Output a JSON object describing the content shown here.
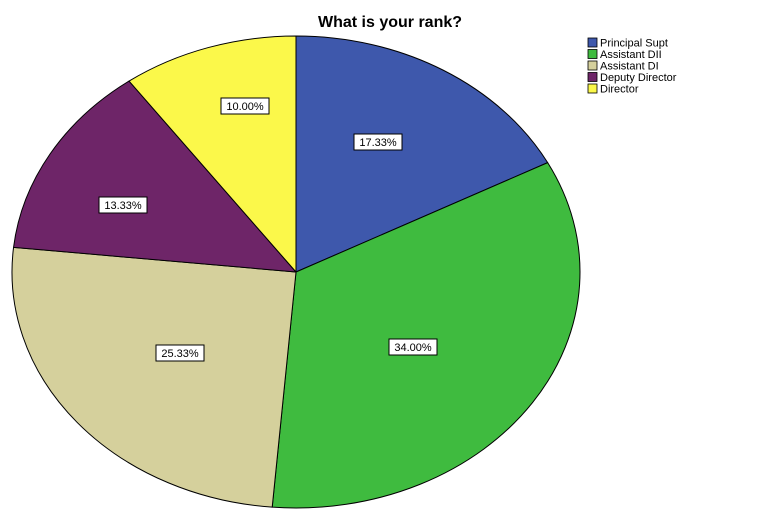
{
  "chart_data": {
    "type": "pie",
    "title": "What is your rank?",
    "categories": [
      "Principal Supt",
      "Assistant DII",
      "Assistant DI",
      "Deputy Director",
      "Director"
    ],
    "values": [
      17.33,
      34.0,
      25.33,
      13.33,
      10.0
    ],
    "labels": [
      "17.33%",
      "34.00%",
      "25.33%",
      "13.33%",
      "10.00%"
    ],
    "colors": [
      "#3e58ac",
      "#3fbb3f",
      "#d5d09c",
      "#6e2568",
      "#fbf84a"
    ],
    "start_angle": "12 o'clock",
    "direction": "clockwise",
    "legend_position": "top-right"
  }
}
